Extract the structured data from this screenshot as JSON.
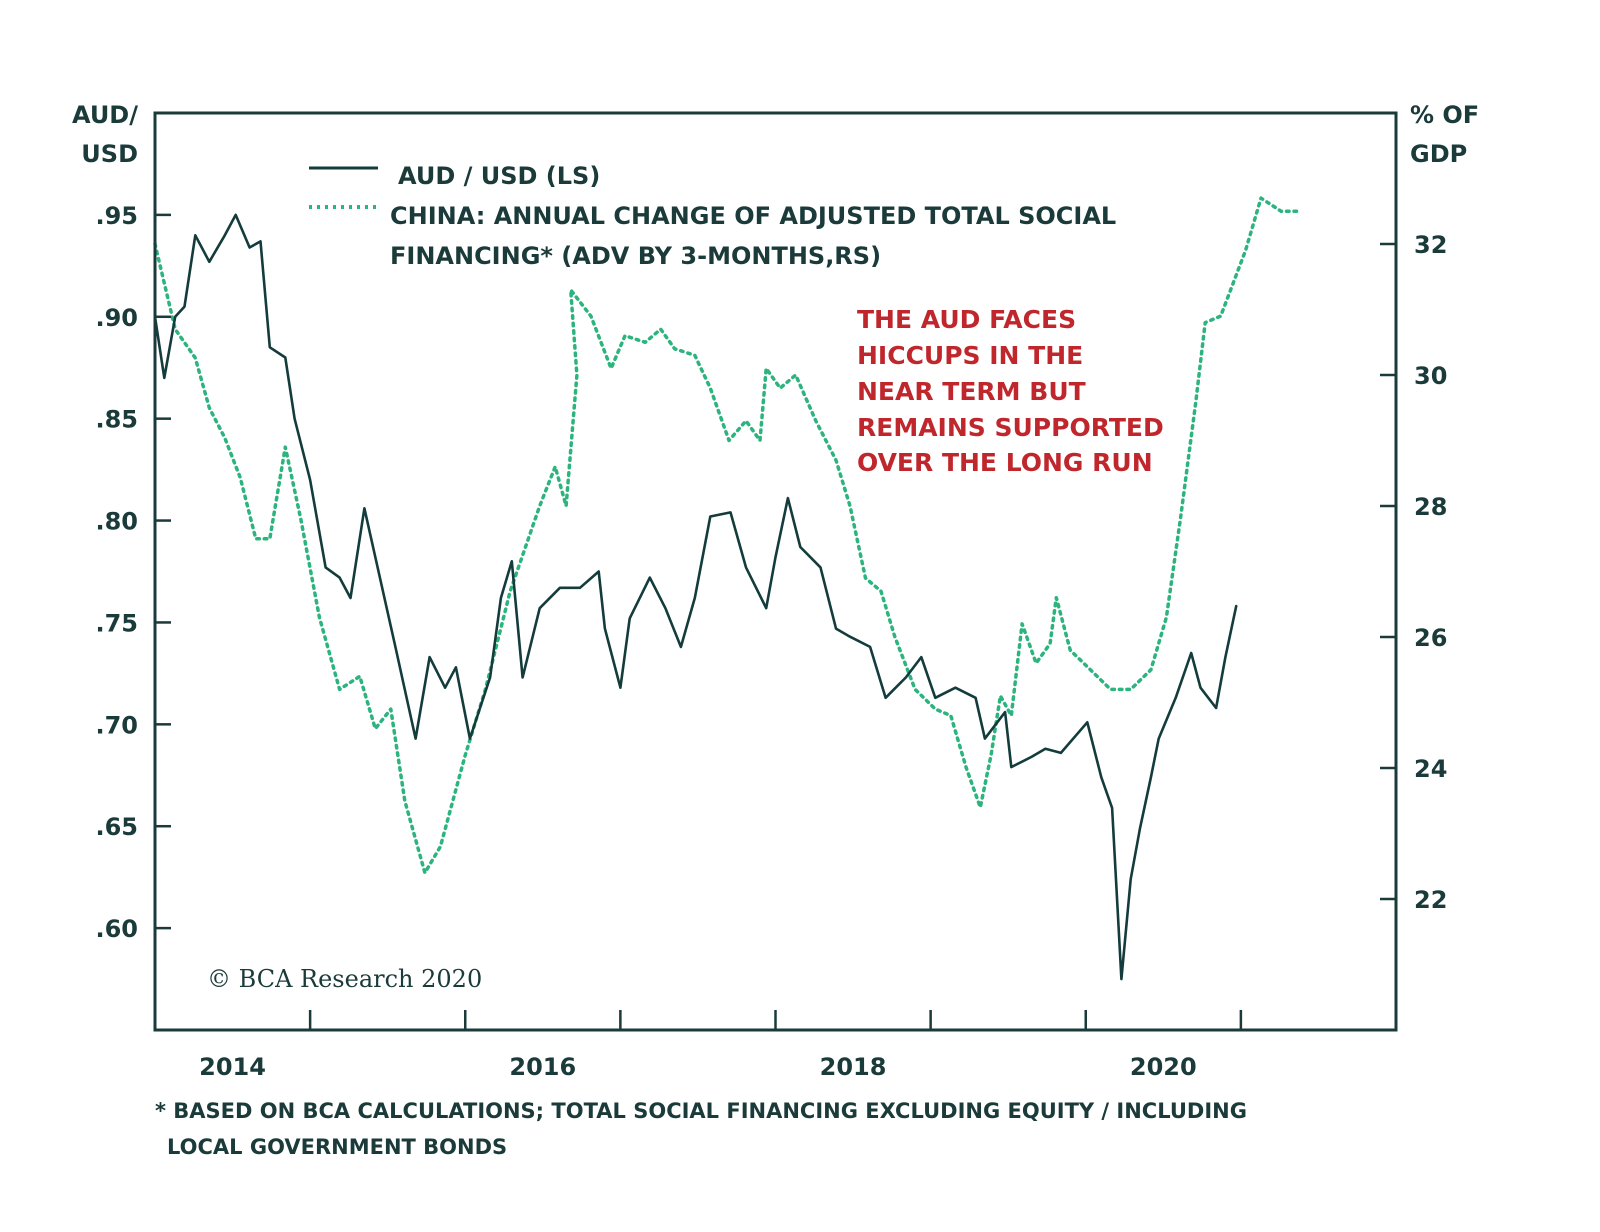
{
  "chart_data": {
    "type": "line",
    "x_axis": {
      "range": [
        2014.0,
        2022.0
      ],
      "tick_years": [
        2015,
        2016,
        2017,
        2018,
        2019,
        2020,
        2021
      ],
      "labels": [
        "2014",
        "2016",
        "2018",
        "2020"
      ]
    },
    "y_left": {
      "title_line1": "AUD/",
      "title_line2": "USD",
      "range": [
        0.55,
        1.0
      ],
      "ticks": [
        0.95,
        0.9,
        0.85,
        0.8,
        0.75,
        0.7,
        0.65,
        0.6
      ],
      "tick_labels": [
        ".95",
        ".90",
        ".85",
        ".80",
        ".75",
        ".70",
        ".65",
        ".60"
      ]
    },
    "y_right": {
      "title_line1": "% OF",
      "title_line2": "GDP",
      "range": [
        20,
        34
      ],
      "ticks": [
        32,
        30,
        28,
        26,
        24,
        22
      ],
      "tick_labels": [
        "32",
        "30",
        "28",
        "26",
        "24",
        "22"
      ]
    },
    "legend": {
      "aud": "AUD / USD (LS)",
      "china_line1": "CHINA: ANNUAL CHANGE OF ADJUSTED TOTAL SOCIAL",
      "china_line2": "FINANCING* (ADV BY 3-MONTHS,RS)"
    },
    "annotation": [
      "THE AUD FACES",
      "HICCUPS IN THE",
      "NEAR TERM BUT",
      "REMAINS SUPPORTED",
      "OVER THE LONG RUN"
    ],
    "copyright": "© BCA Research 2020",
    "footnote_line1": "* BASED ON BCA CALCULATIONS; TOTAL SOCIAL FINANCING EXCLUDING EQUITY / INCLUDING",
    "footnote_line2": "LOCAL GOVERNMENT BONDS",
    "colors": {
      "aud": "#143c3c",
      "china": "#2db47e",
      "annotation": "#c0272d",
      "axis": "#1b3a3a"
    },
    "series": [
      {
        "name": "AUD / USD (LS)",
        "axis": "left",
        "style": "solid",
        "x": [
          2014.0,
          2014.06,
          2014.13,
          2014.19,
          2014.26,
          2014.35,
          2014.45,
          2014.52,
          2014.61,
          2014.68,
          2014.74,
          2014.84,
          2014.9,
          2015.0,
          2015.1,
          2015.19,
          2015.26,
          2015.35,
          2015.45,
          2015.55,
          2015.68,
          2015.77,
          2015.87,
          2015.94,
          2016.03,
          2016.16,
          2016.23,
          2016.3,
          2016.37,
          2016.48,
          2016.61,
          2016.74,
          2016.86,
          2016.9,
          2017.0,
          2017.06,
          2017.19,
          2017.29,
          2017.39,
          2017.48,
          2017.58,
          2017.71,
          2017.81,
          2017.94,
          2018.0,
          2018.08,
          2018.16,
          2018.29,
          2018.39,
          2018.48,
          2018.61,
          2018.71,
          2018.84,
          2018.94,
          2019.03,
          2019.16,
          2019.29,
          2019.35,
          2019.48,
          2019.52,
          2019.65,
          2019.74,
          2019.84,
          2020.01,
          2020.1,
          2020.17,
          2020.23,
          2020.29,
          2020.35,
          2020.42,
          2020.47,
          2020.58,
          2020.68,
          2020.74,
          2020.84,
          2020.9,
          2020.97
        ],
        "y": [
          0.9,
          0.87,
          0.9,
          0.905,
          0.94,
          0.927,
          0.94,
          0.95,
          0.934,
          0.937,
          0.885,
          0.88,
          0.85,
          0.82,
          0.777,
          0.772,
          0.762,
          0.806,
          0.772,
          0.738,
          0.693,
          0.733,
          0.718,
          0.728,
          0.693,
          0.723,
          0.762,
          0.78,
          0.723,
          0.757,
          0.767,
          0.767,
          0.775,
          0.747,
          0.718,
          0.752,
          0.772,
          0.757,
          0.738,
          0.762,
          0.802,
          0.804,
          0.777,
          0.757,
          0.782,
          0.811,
          0.787,
          0.777,
          0.747,
          0.743,
          0.738,
          0.713,
          0.723,
          0.733,
          0.713,
          0.718,
          0.713,
          0.693,
          0.706,
          0.679,
          0.684,
          0.688,
          0.686,
          0.701,
          0.674,
          0.659,
          0.575,
          0.624,
          0.649,
          0.674,
          0.693,
          0.713,
          0.735,
          0.718,
          0.708,
          0.733,
          0.758
        ]
      },
      {
        "name": "China: annual change of adjusted total social financing (RS)",
        "axis": "right",
        "style": "dotted",
        "x": [
          2014.0,
          2014.13,
          2014.26,
          2014.35,
          2014.45,
          2014.55,
          2014.65,
          2014.74,
          2014.84,
          2014.94,
          2015.06,
          2015.19,
          2015.32,
          2015.42,
          2015.52,
          2015.61,
          2015.74,
          2015.84,
          2016.0,
          2016.13,
          2016.29,
          2016.48,
          2016.58,
          2016.65,
          2016.72,
          2016.68,
          2016.81,
          2016.94,
          2017.03,
          2017.16,
          2017.26,
          2017.35,
          2017.48,
          2017.58,
          2017.7,
          2017.81,
          2017.9,
          2017.94,
          2018.03,
          2018.13,
          2018.26,
          2018.39,
          2018.48,
          2018.58,
          2018.68,
          2018.77,
          2018.9,
          2019.03,
          2019.13,
          2019.23,
          2019.32,
          2019.39,
          2019.45,
          2019.52,
          2019.59,
          2019.68,
          2019.77,
          2019.81,
          2019.9,
          2020.03,
          2020.16,
          2020.29,
          2020.42,
          2020.52,
          2020.61,
          2020.71,
          2020.77,
          2020.87,
          2021.03,
          2021.13,
          2021.26,
          2021.37
        ],
        "y": [
          32.0,
          30.7,
          30.26,
          29.5,
          29.04,
          28.43,
          27.5,
          27.5,
          28.9,
          27.8,
          26.3,
          25.2,
          25.4,
          24.6,
          24.9,
          23.5,
          22.4,
          22.8,
          24.2,
          25.2,
          26.7,
          28.0,
          28.6,
          28.0,
          30.0,
          31.3,
          30.9,
          30.1,
          30.6,
          30.5,
          30.7,
          30.4,
          30.3,
          29.8,
          29.0,
          29.3,
          29.0,
          30.1,
          29.8,
          30.0,
          29.3,
          28.7,
          28.0,
          26.9,
          26.7,
          26.0,
          25.2,
          24.9,
          24.8,
          24.0,
          23.4,
          24.2,
          25.1,
          24.8,
          26.2,
          25.6,
          25.9,
          26.6,
          25.8,
          25.5,
          25.2,
          25.2,
          25.5,
          26.3,
          27.8,
          29.6,
          30.8,
          30.9,
          31.9,
          32.7,
          32.5,
          32.5
        ]
      }
    ]
  }
}
